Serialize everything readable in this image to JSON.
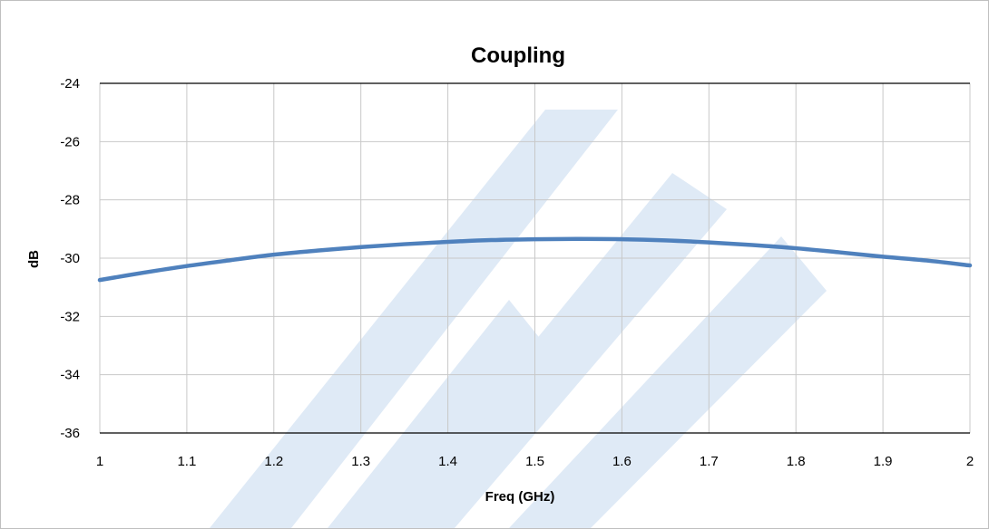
{
  "chart_data": {
    "type": "line",
    "title": "Coupling",
    "xlabel": "Freq (GHz)",
    "ylabel": "dB",
    "xlim": [
      1,
      2
    ],
    "ylim": [
      -36,
      -24
    ],
    "x_ticks": [
      "1",
      "1.1",
      "1.2",
      "1.3",
      "1.4",
      "1.5",
      "1.6",
      "1.7",
      "1.8",
      "1.9",
      "2"
    ],
    "y_ticks": [
      "-24",
      "-26",
      "-28",
      "-30",
      "-32",
      "-34",
      "-36"
    ],
    "grid": true,
    "legend": "none",
    "series_color": "#4f81bd",
    "watermark_color": "#dfeaf6",
    "series": [
      {
        "x": [
          1.0,
          1.05,
          1.1,
          1.15,
          1.2,
          1.25,
          1.3,
          1.35,
          1.4,
          1.45,
          1.5,
          1.55,
          1.6,
          1.65,
          1.7,
          1.75,
          1.8,
          1.85,
          1.9,
          1.95,
          2.0
        ],
        "y": [
          -30.75,
          -30.5,
          -30.27,
          -30.07,
          -29.88,
          -29.74,
          -29.62,
          -29.52,
          -29.44,
          -29.38,
          -29.35,
          -29.34,
          -29.35,
          -29.39,
          -29.46,
          -29.55,
          -29.66,
          -29.8,
          -29.95,
          -30.08,
          -30.25
        ]
      }
    ]
  }
}
